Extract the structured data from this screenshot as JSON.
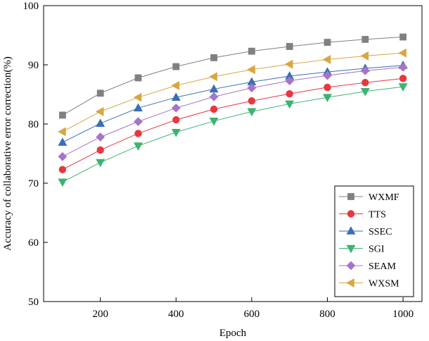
{
  "chart_data": {
    "type": "line",
    "title": "",
    "xlabel": "Epoch",
    "ylabel": "Accuracy of collaborative error correction(%)",
    "xlim": [
      50,
      1050
    ],
    "ylim": [
      50,
      100
    ],
    "x": [
      100,
      200,
      300,
      400,
      500,
      600,
      700,
      800,
      900,
      1000
    ],
    "x_ticks": [
      200,
      400,
      600,
      800,
      1000
    ],
    "y_ticks": [
      50,
      60,
      70,
      80,
      90,
      100
    ],
    "grid": false,
    "legend_position": "bottom-right",
    "series": [
      {
        "name": "WXMF",
        "color": "#808080",
        "marker": "square",
        "values": [
          81.5,
          85.2,
          87.8,
          89.7,
          91.2,
          92.3,
          93.1,
          93.8,
          94.3,
          94.7
        ]
      },
      {
        "name": "TTS",
        "color": "#e8383d",
        "marker": "circle",
        "values": [
          72.3,
          75.6,
          78.4,
          80.7,
          82.5,
          83.9,
          85.1,
          86.2,
          87.0,
          87.7
        ]
      },
      {
        "name": "SSEC",
        "color": "#3a6fb5",
        "marker": "triangle-up",
        "values": [
          76.9,
          80.1,
          82.7,
          84.5,
          85.9,
          87.1,
          88.1,
          88.8,
          89.4,
          89.9
        ]
      },
      {
        "name": "SGI",
        "color": "#3cb371",
        "marker": "triangle-down",
        "values": [
          70.2,
          73.5,
          76.3,
          78.6,
          80.5,
          82.1,
          83.4,
          84.5,
          85.5,
          86.3
        ]
      },
      {
        "name": "SEAM",
        "color": "#a675c8",
        "marker": "diamond",
        "values": [
          74.5,
          77.8,
          80.4,
          82.7,
          84.6,
          86.1,
          87.3,
          88.2,
          89.0,
          89.6
        ]
      },
      {
        "name": "WXSM",
        "color": "#d9a640",
        "marker": "triangle-left",
        "values": [
          78.7,
          82.1,
          84.5,
          86.5,
          88.0,
          89.2,
          90.1,
          90.9,
          91.5,
          92.0
        ]
      }
    ]
  }
}
